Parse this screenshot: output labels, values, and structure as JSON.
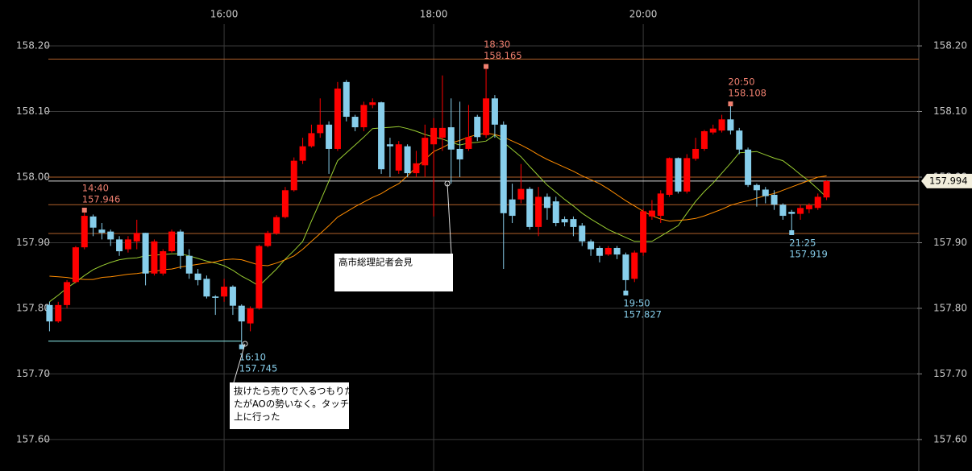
{
  "chart_data": {
    "type": "candlestick",
    "categories": [
      null,
      null,
      null,
      null,
      null,
      null,
      null,
      null,
      null,
      null,
      null,
      null,
      null,
      null,
      null,
      null,
      null,
      null,
      null,
      null,
      "16:00",
      null,
      null,
      null,
      null,
      null,
      null,
      null,
      null,
      null,
      null,
      null,
      null,
      null,
      null,
      null,
      null,
      null,
      null,
      null,
      null,
      null,
      null,
      null,
      "18:00",
      null,
      null,
      null,
      null,
      null,
      null,
      null,
      null,
      null,
      null,
      null,
      null,
      null,
      null,
      null,
      null,
      null,
      null,
      null,
      null,
      null,
      null,
      null,
      "20:00",
      null,
      null,
      null,
      null,
      null,
      null,
      null,
      null,
      null,
      null,
      null,
      null,
      null,
      null,
      null,
      null,
      null,
      null,
      null,
      null,
      null
    ],
    "open": [
      157.805,
      157.78,
      157.805,
      157.84,
      157.893,
      157.94,
      157.92,
      157.917,
      157.905,
      157.89,
      157.902,
      157.915,
      157.853,
      157.853,
      157.887,
      157.917,
      157.88,
      157.853,
      157.845,
      157.818,
      157.818,
      157.833,
      157.804,
      157.777,
      157.8,
      157.895,
      157.914,
      157.939,
      157.98,
      158.025,
      158.047,
      158.067,
      158.08,
      158.043,
      158.145,
      158.092,
      158.076,
      158.11,
      158.114,
      158.05,
      158.01,
      158.047,
      158.006,
      158.018,
      158.05,
      158.06,
      158.076,
      158.043,
      158.043,
      158.092,
      158.064,
      158.12,
      158.08,
      157.966,
      157.966,
      157.982,
      157.924,
      157.97,
      157.963,
      157.936,
      157.936,
      157.926,
      157.902,
      157.892,
      157.882,
      157.892,
      157.882,
      157.845,
      157.885,
      157.94,
      157.941,
      157.973,
      158.029,
      157.978,
      158.028,
      158.043,
      158.068,
      158.071,
      158.088,
      158.071,
      158.042,
      157.988,
      157.981,
      157.973,
      157.958,
      157.947,
      157.944,
      157.951,
      157.953,
      157.969
    ],
    "high": [
      157.81,
      157.81,
      157.843,
      157.895,
      157.946,
      157.943,
      157.93,
      157.92,
      157.91,
      157.91,
      157.935,
      157.915,
      157.905,
      157.89,
      157.92,
      157.92,
      157.89,
      157.86,
      157.85,
      157.82,
      157.845,
      157.835,
      157.806,
      157.803,
      157.897,
      157.918,
      157.942,
      157.985,
      158.03,
      158.06,
      158.08,
      158.12,
      158.085,
      158.145,
      158.148,
      158.095,
      158.115,
      158.12,
      158.115,
      158.06,
      158.055,
      158.05,
      158.04,
      158.08,
      158.09,
      158.155,
      158.12,
      158.115,
      158.11,
      158.095,
      158.165,
      158.125,
      158.085,
      157.99,
      158.02,
      157.985,
      157.985,
      157.975,
      157.97,
      157.94,
      157.94,
      157.93,
      157.905,
      157.895,
      157.895,
      157.895,
      157.885,
      157.888,
      157.952,
      157.965,
      157.98,
      158.03,
      158.03,
      158.035,
      158.06,
      158.072,
      158.08,
      158.095,
      158.108,
      158.075,
      158.045,
      157.99,
      157.985,
      157.98,
      157.96,
      157.95,
      157.958,
      157.96,
      157.975,
      157.995
    ],
    "low": [
      157.765,
      157.778,
      157.8,
      157.838,
      157.89,
      157.91,
      157.905,
      157.895,
      157.88,
      157.885,
      157.89,
      157.835,
      157.85,
      157.85,
      157.885,
      157.86,
      157.845,
      157.835,
      157.815,
      157.79,
      157.81,
      157.79,
      157.745,
      157.765,
      157.798,
      157.893,
      157.912,
      157.937,
      157.978,
      158.02,
      158.045,
      158.06,
      158.005,
      158.04,
      158.085,
      158.07,
      158.07,
      158.105,
      158.005,
      158,
      158.005,
      158,
      158,
      158,
      157.94,
      158.04,
      157.99,
      158,
      158.04,
      158.055,
      158.06,
      158.06,
      157.86,
      157.93,
      157.96,
      157.92,
      157.91,
      157.935,
      157.925,
      157.925,
      157.91,
      157.895,
      157.88,
      157.87,
      157.88,
      157.875,
      157.827,
      157.84,
      157.88,
      157.935,
      157.93,
      157.97,
      157.975,
      157.975,
      158.025,
      158.04,
      158.065,
      158.068,
      158.065,
      158.035,
      157.985,
      157.955,
      157.96,
      157.95,
      157.935,
      157.919,
      157.935,
      157.945,
      157.95,
      157.965
    ],
    "close": [
      157.78,
      157.805,
      157.84,
      157.893,
      157.941,
      157.923,
      157.915,
      157.905,
      157.887,
      157.905,
      157.915,
      157.853,
      157.902,
      157.887,
      157.917,
      157.88,
      157.853,
      157.843,
      157.818,
      157.816,
      157.833,
      157.804,
      157.78,
      157.8,
      157.895,
      157.915,
      157.939,
      157.98,
      158.025,
      158.047,
      158.067,
      158.08,
      158.043,
      158.135,
      158.092,
      158.076,
      158.11,
      158.114,
      158.012,
      158.047,
      158.05,
      158.006,
      158.021,
      158.06,
      158.075,
      158.075,
      158.042,
      158.027,
      158.061,
      158.061,
      158.12,
      158.08,
      157.945,
      157.941,
      157.982,
      157.924,
      157.97,
      157.953,
      157.93,
      157.931,
      157.924,
      157.902,
      157.89,
      157.88,
      157.892,
      157.882,
      157.843,
      157.885,
      157.948,
      157.949,
      157.975,
      158.029,
      157.978,
      158.029,
      158.043,
      158.07,
      158.074,
      158.088,
      158.071,
      158.042,
      157.988,
      157.98,
      157.971,
      157.958,
      157.941,
      157.944,
      157.953,
      157.957,
      157.97,
      157.994
    ],
    "up_color": "#ff0000",
    "down_color": "#87ceeb",
    "series": [
      {
        "color": "#9acd32",
        "values": [
          157.81,
          157.82,
          157.831,
          157.84,
          157.85,
          157.859,
          157.865,
          157.87,
          157.874,
          157.876,
          157.877,
          157.88,
          157.881,
          157.882,
          157.883,
          157.883,
          157.88,
          157.876,
          157.872,
          157.869,
          157.865,
          157.858,
          157.849,
          157.842,
          157.834,
          157.847,
          157.86,
          157.875,
          157.888,
          157.902,
          157.933,
          157.963,
          157.994,
          158.025,
          158.037,
          158.049,
          158.061,
          158.074,
          158.075,
          158.076,
          158.077,
          158.074,
          158.07,
          158.065,
          158.061,
          158.058,
          158.053,
          158.049,
          158.052,
          158.053,
          158.055,
          158.064,
          158.053,
          158.042,
          158.031,
          158.016,
          158.002,
          157.988,
          157.977,
          157.966,
          157.956,
          157.945,
          157.936,
          157.928,
          157.92,
          157.914,
          157.908,
          157.902,
          157.902,
          157.902,
          157.91,
          157.918,
          157.926,
          157.945,
          157.963,
          157.978,
          157.991,
          158.006,
          158.021,
          158.037,
          158.038,
          158.039,
          158.034,
          158.029,
          158.025,
          158.015,
          158.004,
          157.994,
          157.982,
          157.969
        ]
      },
      {
        "color": "#ff8c00",
        "values": [
          157.849,
          157.848,
          157.847,
          157.845,
          157.844,
          157.844,
          157.847,
          157.848,
          157.85,
          157.852,
          157.853,
          157.855,
          157.856,
          157.859,
          157.86,
          157.863,
          157.865,
          157.867,
          157.869,
          157.871,
          157.874,
          157.875,
          157.874,
          157.87,
          157.866,
          157.865,
          157.869,
          157.874,
          157.88,
          157.89,
          157.902,
          157.914,
          157.926,
          157.939,
          157.947,
          157.955,
          157.962,
          157.969,
          157.975,
          157.983,
          157.99,
          158.002,
          158.015,
          158.027,
          158.039,
          158.045,
          158.052,
          158.056,
          158.061,
          158.065,
          158.067,
          158.065,
          158.061,
          158.055,
          158.049,
          158.042,
          158.034,
          158.027,
          158.021,
          158.015,
          158.009,
          158.002,
          157.996,
          157.99,
          157.982,
          157.973,
          157.964,
          157.956,
          157.948,
          157.941,
          157.936,
          157.933,
          157.934,
          157.935,
          157.937,
          157.941,
          157.946,
          157.951,
          157.957,
          157.961,
          157.964,
          157.968,
          157.972,
          157.975,
          157.98,
          157.985,
          157.99,
          157.995,
          158,
          158.002
        ]
      }
    ],
    "ylim": [
      157.552,
      158.27
    ],
    "yticks": [
      {
        "value": 157.6,
        "label": "157.60"
      },
      {
        "value": 157.7,
        "label": "157.70"
      },
      {
        "value": 157.8,
        "label": "157.80"
      },
      {
        "value": 157.9,
        "label": "157.90"
      },
      {
        "value": 158,
        "label": "158.00"
      },
      {
        "value": 158.1,
        "label": "158.10"
      },
      {
        "value": 158.2,
        "label": "158.20"
      }
    ],
    "grid": true,
    "levels": [
      158.18,
      158,
      157.958,
      157.914
    ],
    "level_color": "#b0602a",
    "support_line": 157.75,
    "last_price": 157.994,
    "annotations": [
      {
        "time": "14:40",
        "value": 157.946
      },
      {
        "time": "16:10",
        "value": 157.745
      },
      {
        "time": "18:30",
        "value": 158.165
      },
      {
        "time": "19:50",
        "value": 157.827
      },
      {
        "time": "20:50",
        "value": 158.108
      },
      {
        "time": "21:25",
        "value": 157.919
      }
    ],
    "notes": [
      {
        "lines": [
          "高市総理記者会見"
        ]
      },
      {
        "lines": [
          "抜けたら売りで入るつもりだっ",
          "たがAOの勢いなく。タッチして",
          "上に行った"
        ]
      }
    ]
  }
}
